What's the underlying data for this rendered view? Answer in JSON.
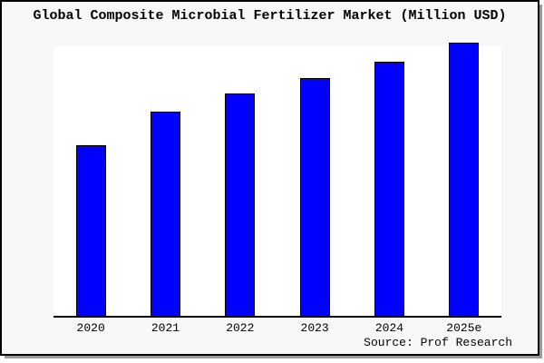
{
  "window": {
    "background": "#f8f8f8",
    "border_color": "#000000",
    "shadow_color": "#9a9a9a"
  },
  "chart_data": {
    "type": "bar",
    "title": "Global Composite Microbial Fertilizer Market (Million USD)",
    "categories": [
      "2020",
      "2021",
      "2022",
      "2023",
      "2024",
      "2025e"
    ],
    "values": [
      188,
      225,
      245,
      262,
      280,
      301
    ],
    "values_note": "y-axis has no tick labels; values are bar heights measured in pixels, proportional to market size (steady year-over-year growth, 2025e about 1.6x the 2020 bar)",
    "xlabel": "",
    "ylabel": "",
    "y_ticks_visible": false,
    "grid": false,
    "legend": false,
    "bar_color": "#0000ff",
    "bar_border_color": "#000000",
    "axis_color": "#000000",
    "plot_background": "#ffffff"
  },
  "source": {
    "label": "Source: Prof Research"
  }
}
